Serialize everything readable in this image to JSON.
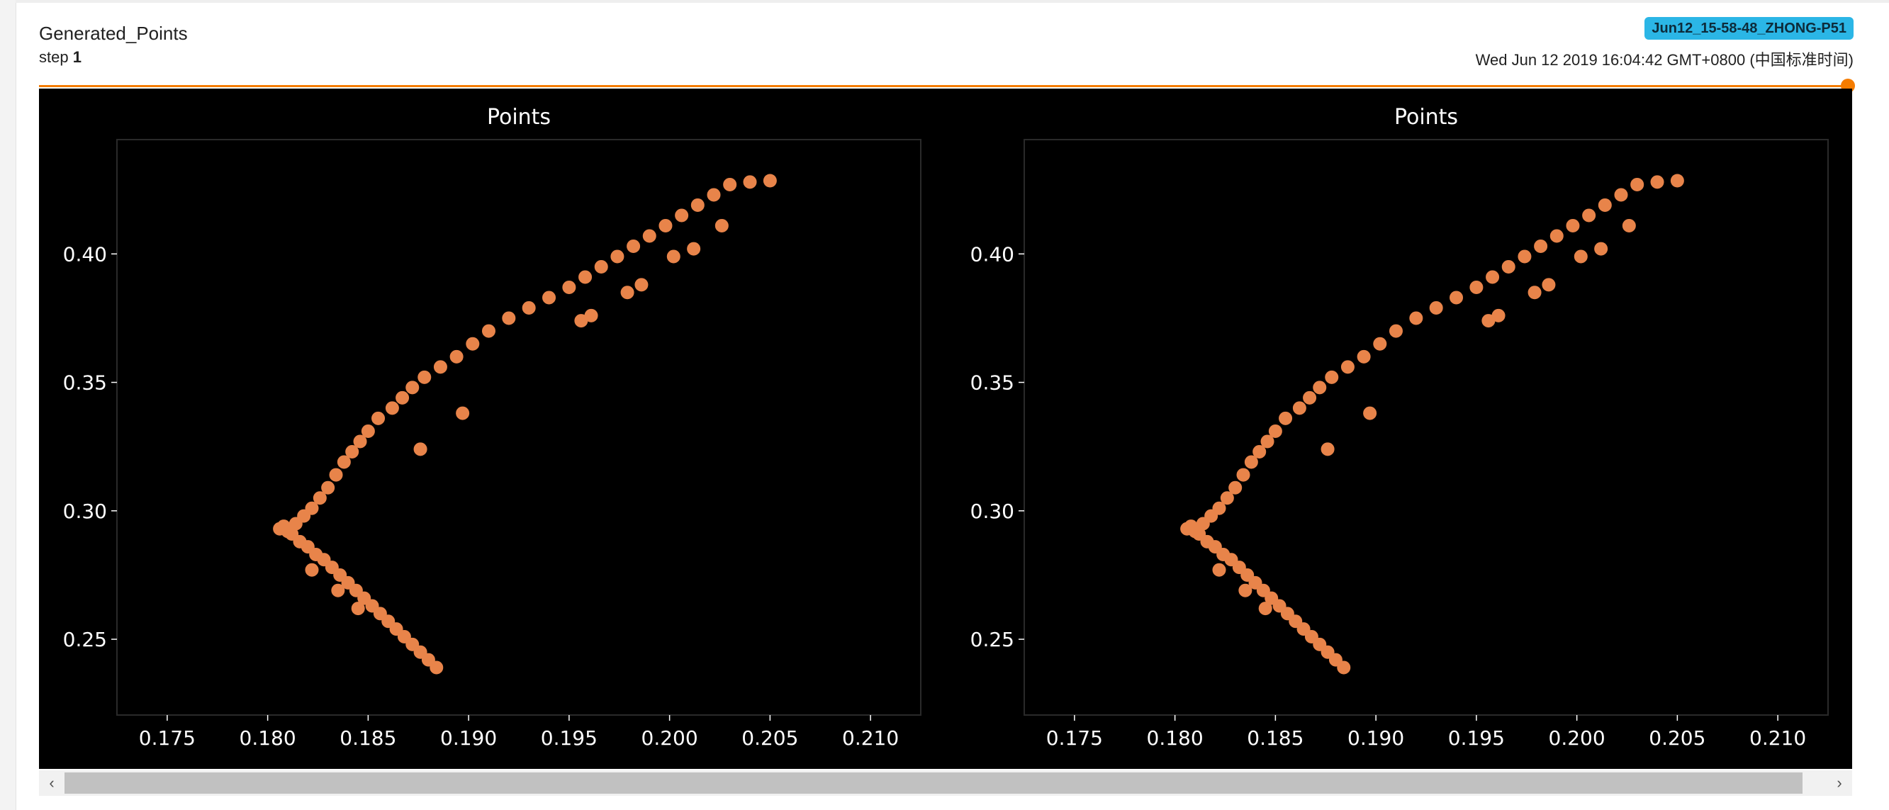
{
  "card": {
    "tag": "Generated_Points",
    "step_label": "step",
    "step_value": "1",
    "run": "Jun12_15-58-48_ZHONG-P51",
    "timestamp": "Wed Jun 12 2019 16:04:42 GMT+0800 (中国标准时间)"
  },
  "colors": {
    "accent": "#f57c00",
    "run_badge": "#2bb6e6",
    "point": "#e8844a",
    "plot_bg": "#000000"
  },
  "slider": {
    "position": 1.0
  },
  "scrollbar": {
    "left_icon": "chevron-left-icon",
    "right_icon": "chevron-right-icon",
    "left_glyph": "‹",
    "right_glyph": "›"
  },
  "chart_data": [
    {
      "type": "scatter",
      "title": "Points",
      "xlabel": "",
      "ylabel": "",
      "xlim": [
        0.1725,
        0.2125
      ],
      "ylim": [
        0.2205,
        0.4445
      ],
      "xticks": [
        "0.175",
        "0.180",
        "0.185",
        "0.190",
        "0.195",
        "0.200",
        "0.205",
        "0.210"
      ],
      "yticks": [
        "0.25",
        "0.30",
        "0.35",
        "0.40"
      ],
      "grid": false,
      "series": [
        {
          "x": [
            0.1884,
            0.188,
            0.1876,
            0.1872,
            0.1868,
            0.1864,
            0.186,
            0.1856,
            0.1852,
            0.1848,
            0.1844,
            0.184,
            0.1836,
            0.1832,
            0.1828,
            0.1824,
            0.182,
            0.1816,
            0.1812,
            0.1808,
            0.1806,
            0.181,
            0.1814,
            0.1818,
            0.1822,
            0.1826,
            0.183,
            0.1834,
            0.1838,
            0.1842,
            0.1846,
            0.185,
            0.1855,
            0.1862,
            0.1867,
            0.1872,
            0.1878,
            0.1886,
            0.1894,
            0.1902,
            0.191,
            0.192,
            0.193,
            0.194,
            0.195,
            0.1958,
            0.1966,
            0.1974,
            0.1982,
            0.199,
            0.1998,
            0.2006,
            0.2014,
            0.2022,
            0.203,
            0.204,
            0.205,
            0.1822,
            0.1835,
            0.1845,
            0.1956,
            0.1961,
            0.1986,
            0.2012,
            0.2026,
            0.2002,
            0.1979,
            0.1897,
            0.1876
          ],
          "y": [
            0.239,
            0.242,
            0.245,
            0.248,
            0.251,
            0.254,
            0.257,
            0.26,
            0.263,
            0.266,
            0.269,
            0.272,
            0.275,
            0.278,
            0.281,
            0.283,
            0.286,
            0.288,
            0.291,
            0.294,
            0.293,
            0.292,
            0.295,
            0.298,
            0.301,
            0.305,
            0.309,
            0.314,
            0.319,
            0.323,
            0.327,
            0.331,
            0.336,
            0.34,
            0.344,
            0.348,
            0.352,
            0.356,
            0.36,
            0.365,
            0.37,
            0.375,
            0.379,
            0.383,
            0.387,
            0.391,
            0.395,
            0.399,
            0.403,
            0.407,
            0.411,
            0.415,
            0.419,
            0.423,
            0.427,
            0.428,
            0.4285,
            0.277,
            0.269,
            0.262,
            0.374,
            0.376,
            0.388,
            0.402,
            0.411,
            0.399,
            0.385,
            0.338,
            0.324
          ]
        }
      ]
    },
    {
      "type": "scatter",
      "title": "Points",
      "xlabel": "",
      "ylabel": "",
      "xlim": [
        0.1725,
        0.2125
      ],
      "ylim": [
        0.2205,
        0.4445
      ],
      "xticks": [
        "0.175",
        "0.180",
        "0.185",
        "0.190",
        "0.195",
        "0.200",
        "0.205",
        "0.210"
      ],
      "yticks": [
        "0.25",
        "0.30",
        "0.35",
        "0.40"
      ],
      "grid": false,
      "series": [
        {
          "x": [
            0.1884,
            0.188,
            0.1876,
            0.1872,
            0.1868,
            0.1864,
            0.186,
            0.1856,
            0.1852,
            0.1848,
            0.1844,
            0.184,
            0.1836,
            0.1832,
            0.1828,
            0.1824,
            0.182,
            0.1816,
            0.1812,
            0.1808,
            0.1806,
            0.181,
            0.1814,
            0.1818,
            0.1822,
            0.1826,
            0.183,
            0.1834,
            0.1838,
            0.1842,
            0.1846,
            0.185,
            0.1855,
            0.1862,
            0.1867,
            0.1872,
            0.1878,
            0.1886,
            0.1894,
            0.1902,
            0.191,
            0.192,
            0.193,
            0.194,
            0.195,
            0.1958,
            0.1966,
            0.1974,
            0.1982,
            0.199,
            0.1998,
            0.2006,
            0.2014,
            0.2022,
            0.203,
            0.204,
            0.205,
            0.1822,
            0.1835,
            0.1845,
            0.1956,
            0.1961,
            0.1986,
            0.2012,
            0.2026,
            0.2002,
            0.1979,
            0.1897,
            0.1876
          ],
          "y": [
            0.239,
            0.242,
            0.245,
            0.248,
            0.251,
            0.254,
            0.257,
            0.26,
            0.263,
            0.266,
            0.269,
            0.272,
            0.275,
            0.278,
            0.281,
            0.283,
            0.286,
            0.288,
            0.291,
            0.294,
            0.293,
            0.292,
            0.295,
            0.298,
            0.301,
            0.305,
            0.309,
            0.314,
            0.319,
            0.323,
            0.327,
            0.331,
            0.336,
            0.34,
            0.344,
            0.348,
            0.352,
            0.356,
            0.36,
            0.365,
            0.37,
            0.375,
            0.379,
            0.383,
            0.387,
            0.391,
            0.395,
            0.399,
            0.403,
            0.407,
            0.411,
            0.415,
            0.419,
            0.423,
            0.427,
            0.428,
            0.4285,
            0.277,
            0.269,
            0.262,
            0.374,
            0.376,
            0.388,
            0.402,
            0.411,
            0.399,
            0.385,
            0.338,
            0.324
          ]
        }
      ]
    }
  ]
}
